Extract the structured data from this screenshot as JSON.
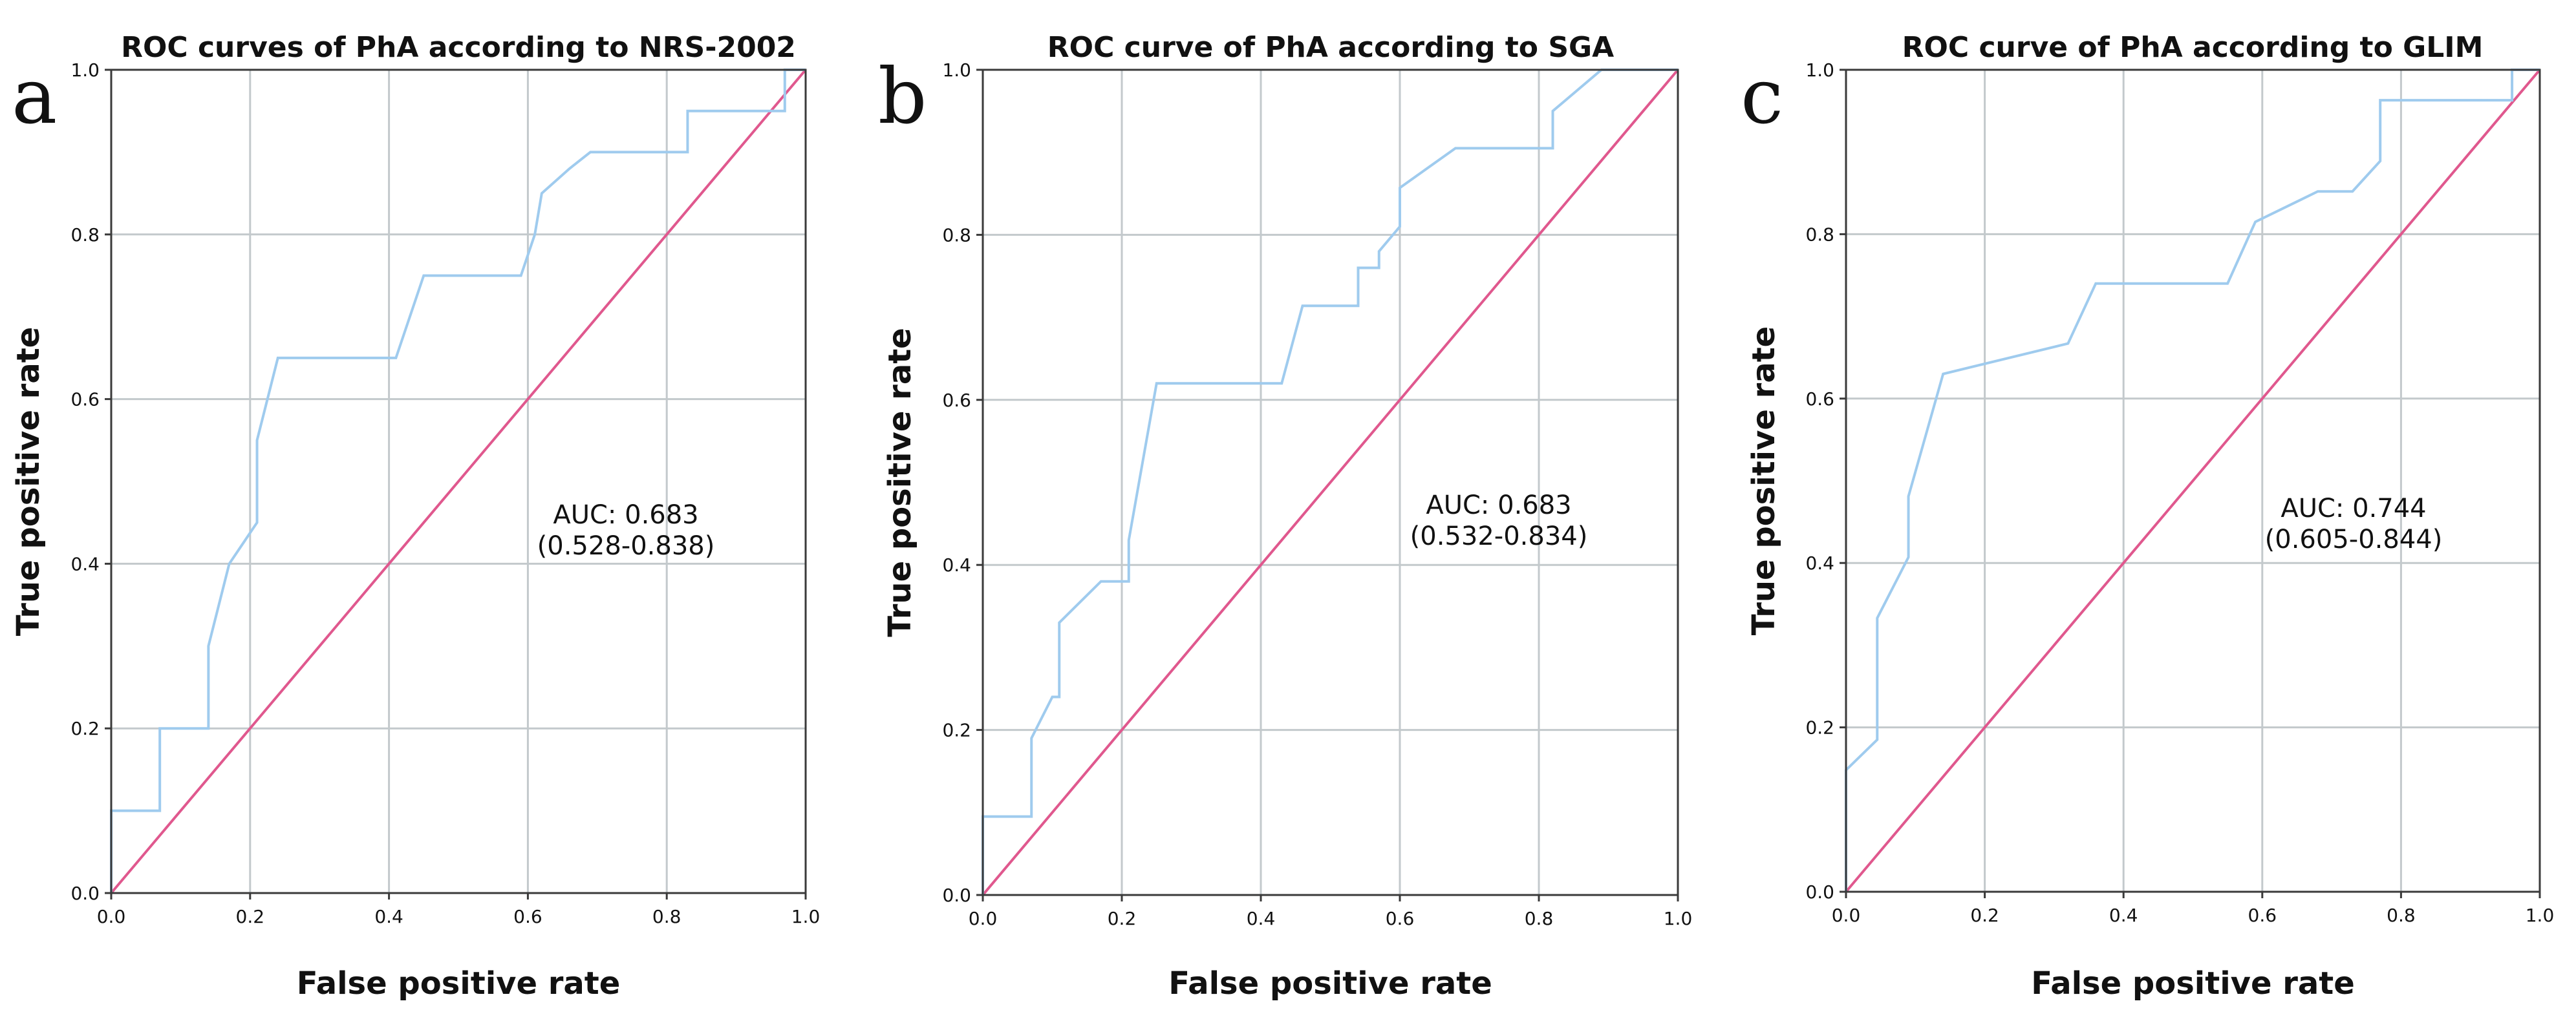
{
  "chart_data": [
    {
      "panel": "a",
      "type": "line",
      "title": "ROC curves of PhA according to NRS-2002",
      "xlabel": "False positive rate",
      "ylabel": "True positive rate",
      "xlim": [
        0,
        1
      ],
      "ylim": [
        0,
        1
      ],
      "xticks": [
        "0.0",
        "0.2",
        "0.4",
        "0.6",
        "0.8",
        "1.0"
      ],
      "yticks": [
        "0.0",
        "0.2",
        "0.4",
        "0.6",
        "0.8",
        "1.0"
      ],
      "grid": true,
      "annotation": [
        "AUC: 0.683",
        "(0.528-0.838)"
      ],
      "colors": {
        "roc": "#9fcbee",
        "reference": "#e0588e"
      },
      "series": [
        {
          "x": [
            0,
            0,
            0.07,
            0.07,
            0.14,
            0.14,
            0.17,
            0.17,
            0.21,
            0.21,
            0.24,
            0.24,
            0.41,
            0.45,
            0.59,
            0.61,
            0.62,
            0.66,
            0.69,
            0.83,
            0.83,
            0.97,
            0.97,
            1.0
          ],
          "y": [
            0,
            0.1,
            0.1,
            0.2,
            0.2,
            0.3,
            0.4,
            0.4,
            0.45,
            0.55,
            0.65,
            0.65,
            0.65,
            0.75,
            0.75,
            0.8,
            0.85,
            0.88,
            0.9,
            0.9,
            0.95,
            0.95,
            1.0,
            1.0
          ]
        },
        {
          "x": [
            0,
            1
          ],
          "y": [
            0,
            1
          ]
        }
      ]
    },
    {
      "panel": "b",
      "type": "line",
      "title": "ROC curve of PhA according to SGA",
      "xlabel": "False positive rate",
      "ylabel": "True positive rate",
      "xlim": [
        0,
        1
      ],
      "ylim": [
        0,
        1
      ],
      "xticks": [
        "0.0",
        "0.2",
        "0.4",
        "0.6",
        "0.8",
        "1.0"
      ],
      "yticks": [
        "0.0",
        "0.2",
        "0.4",
        "0.6",
        "0.8",
        "1.0"
      ],
      "grid": true,
      "annotation": [
        "AUC: 0.683",
        "(0.532-0.834)"
      ],
      "colors": {
        "roc": "#9fcbee",
        "reference": "#e0588e"
      },
      "series": [
        {
          "x": [
            0,
            0,
            0.07,
            0.07,
            0.1,
            0.11,
            0.11,
            0.17,
            0.21,
            0.21,
            0.25,
            0.25,
            0.43,
            0.46,
            0.54,
            0.54,
            0.57,
            0.57,
            0.6,
            0.6,
            0.68,
            0.82,
            0.82,
            0.89,
            1.0
          ],
          "y": [
            0,
            0.095,
            0.095,
            0.19,
            0.24,
            0.24,
            0.33,
            0.38,
            0.38,
            0.43,
            0.62,
            0.62,
            0.62,
            0.714,
            0.714,
            0.76,
            0.76,
            0.78,
            0.81,
            0.857,
            0.905,
            0.905,
            0.95,
            1.0,
            1.0
          ]
        },
        {
          "x": [
            0,
            1
          ],
          "y": [
            0,
            1
          ]
        }
      ]
    },
    {
      "panel": "c",
      "type": "line",
      "title": "ROC curve of PhA according to GLIM",
      "xlabel": "False positive rate",
      "ylabel": "True positive rate",
      "xlim": [
        0,
        1
      ],
      "ylim": [
        0,
        1
      ],
      "xticks": [
        "0.0",
        "0.2",
        "0.4",
        "0.6",
        "0.8",
        "1.0"
      ],
      "yticks": [
        "0.0",
        "0.2",
        "0.4",
        "0.6",
        "0.8",
        "1.0"
      ],
      "grid": true,
      "annotation": [
        "AUC: 0.744",
        "(0.605-0.844)"
      ],
      "colors": {
        "roc": "#9fcbee",
        "reference": "#e0588e"
      },
      "series": [
        {
          "x": [
            0,
            0,
            0.045,
            0.045,
            0.09,
            0.09,
            0.14,
            0.32,
            0.36,
            0.55,
            0.59,
            0.68,
            0.73,
            0.77,
            0.77,
            0.96,
            0.96,
            1.0
          ],
          "y": [
            0,
            0.148,
            0.185,
            0.333,
            0.407,
            0.481,
            0.63,
            0.667,
            0.74,
            0.74,
            0.815,
            0.852,
            0.852,
            0.889,
            0.963,
            0.963,
            1.0,
            1.0
          ]
        },
        {
          "x": [
            0,
            1
          ],
          "y": [
            0,
            1
          ]
        }
      ]
    }
  ]
}
